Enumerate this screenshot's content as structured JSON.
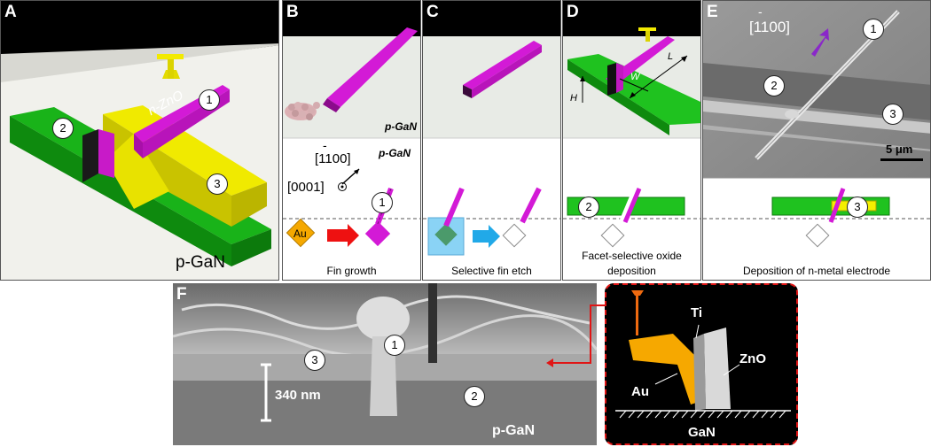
{
  "panels": {
    "A": {
      "label": "A",
      "substrate": "p-GaN",
      "nanowire": "n-ZnO",
      "markers": [
        "1",
        "2",
        "3"
      ]
    },
    "B": {
      "label": "B",
      "substrate_top": "p-GaN",
      "substrate_bottom": "p-GaN",
      "direction_1": "[1100]",
      "direction_1_bar": "-",
      "direction_2": "[0001]",
      "seed": "Au",
      "marker": "1",
      "caption": "Fin growth"
    },
    "C": {
      "label": "C",
      "caption": "Selective fin etch"
    },
    "D": {
      "label": "D",
      "dim_L": "L",
      "dim_W": "W",
      "dim_H": "H",
      "marker": "2",
      "caption_line1": "Facet-selective oxide",
      "caption_line2": "deposition"
    },
    "E": {
      "label": "E",
      "direction": "[1100]",
      "direction_bar": "-",
      "markers": [
        "1",
        "2",
        "3"
      ],
      "scalebar": "5 μm",
      "marker_bottom": "3",
      "caption": "Deposition of n-metal electrode"
    },
    "F": {
      "label": "F",
      "markers": [
        "1",
        "3",
        "2"
      ],
      "thickness": "340 nm",
      "substrate": "p-GaN"
    },
    "inset": {
      "ti": "Ti",
      "zno": "ZnO",
      "au": "Au",
      "gan": "GaN"
    }
  },
  "colors": {
    "green": "#1fc21f",
    "magenta": "#d31ad6",
    "yellow": "#f5ef00",
    "orange": "#f6a800",
    "black": "#000000"
  }
}
